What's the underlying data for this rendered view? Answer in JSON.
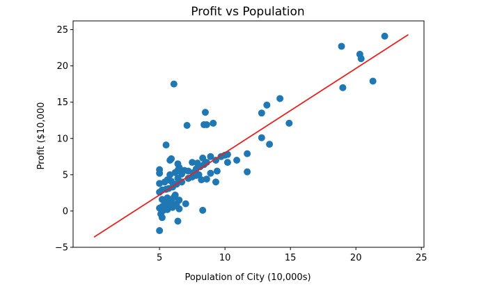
{
  "chart_data": {
    "type": "scatter",
    "title": "Profit vs Population",
    "xlabel": "Population of City (10,000s)",
    "ylabel": "Profit ($10,000",
    "xlim": [
      -1.6,
      25.2
    ],
    "ylim": [
      -5.0,
      26.2
    ],
    "xticks": [
      5,
      10,
      15,
      20,
      25
    ],
    "yticks": [
      -5,
      0,
      5,
      10,
      15,
      20,
      25
    ],
    "ytick_labels": [
      "−5",
      "0",
      "5",
      "10",
      "15",
      "20",
      "25"
    ],
    "grid": false,
    "point_color": "#1f77b4",
    "line_color": "#e8201d",
    "fit_line": {
      "x": [
        0,
        24
      ],
      "y": [
        -3.6,
        24.3
      ]
    },
    "points": [
      [
        5.0,
        -2.7
      ],
      [
        5.1,
        -0.4
      ],
      [
        5.2,
        -0.9
      ],
      [
        5.0,
        0.4
      ],
      [
        5.3,
        0.1
      ],
      [
        5.2,
        0.6
      ],
      [
        5.4,
        0.3
      ],
      [
        5.5,
        0.8
      ],
      [
        5.6,
        0.2
      ],
      [
        5.8,
        0.9
      ],
      [
        6.0,
        0.5
      ],
      [
        5.2,
        1.6
      ],
      [
        5.4,
        1.2
      ],
      [
        5.6,
        1.8
      ],
      [
        5.9,
        1.3
      ],
      [
        6.1,
        1.9
      ],
      [
        6.3,
        1.0
      ],
      [
        6.5,
        1.5
      ],
      [
        6.2,
        2.2
      ],
      [
        5.0,
        2.6
      ],
      [
        5.2,
        2.9
      ],
      [
        5.5,
        3.0
      ],
      [
        5.7,
        3.1
      ],
      [
        6.0,
        3.3
      ],
      [
        6.3,
        3.7
      ],
      [
        5.0,
        3.8
      ],
      [
        5.4,
        4.0
      ],
      [
        5.6,
        4.3
      ],
      [
        5.9,
        4.1
      ],
      [
        6.4,
        4.5
      ],
      [
        6.7,
        4.0
      ],
      [
        5.0,
        5.2
      ],
      [
        5.0,
        5.7
      ],
      [
        5.8,
        5.0
      ],
      [
        6.2,
        5.3
      ],
      [
        6.4,
        5.6
      ],
      [
        6.7,
        5.1
      ],
      [
        6.9,
        5.6
      ],
      [
        6.5,
        6.0
      ],
      [
        6.4,
        6.5
      ],
      [
        5.8,
        7.0
      ],
      [
        5.9,
        7.2
      ],
      [
        7.2,
        4.5
      ],
      [
        7.5,
        4.7
      ],
      [
        7.8,
        4.9
      ],
      [
        8.0,
        5.0
      ],
      [
        7.6,
        5.3
      ],
      [
        7.2,
        5.5
      ],
      [
        7.8,
        5.8
      ],
      [
        8.1,
        6.1
      ],
      [
        8.4,
        6.4
      ],
      [
        8.3,
        7.3
      ],
      [
        8.6,
        6.7
      ],
      [
        8.9,
        7.5
      ],
      [
        7.5,
        6.7
      ],
      [
        7.9,
        6.6
      ],
      [
        8.2,
        4.3
      ],
      [
        8.6,
        4.4
      ],
      [
        8.9,
        5.2
      ],
      [
        9.3,
        4.0
      ],
      [
        9.4,
        5.5
      ],
      [
        9.3,
        7.0
      ],
      [
        9.7,
        7.5
      ],
      [
        10.0,
        7.7
      ],
      [
        10.2,
        7.8
      ],
      [
        10.2,
        6.7
      ],
      [
        10.9,
        7.0
      ],
      [
        11.7,
        7.9
      ],
      [
        11.7,
        5.4
      ],
      [
        6.4,
        -1.4
      ],
      [
        6.5,
        0.3
      ],
      [
        7.0,
        1.0
      ],
      [
        8.3,
        0.1
      ],
      [
        5.5,
        9.1
      ],
      [
        6.1,
        17.5
      ],
      [
        7.1,
        11.8
      ],
      [
        8.4,
        11.9
      ],
      [
        8.6,
        11.9
      ],
      [
        9.1,
        12.1
      ],
      [
        8.5,
        13.6
      ],
      [
        12.8,
        13.5
      ],
      [
        13.2,
        14.6
      ],
      [
        14.2,
        15.5
      ],
      [
        12.8,
        10.1
      ],
      [
        13.4,
        9.2
      ],
      [
        14.9,
        12.1
      ],
      [
        18.9,
        22.7
      ],
      [
        19.0,
        17.0
      ],
      [
        20.3,
        21.6
      ],
      [
        20.4,
        21.0
      ],
      [
        21.3,
        17.9
      ],
      [
        22.2,
        24.1
      ]
    ]
  }
}
